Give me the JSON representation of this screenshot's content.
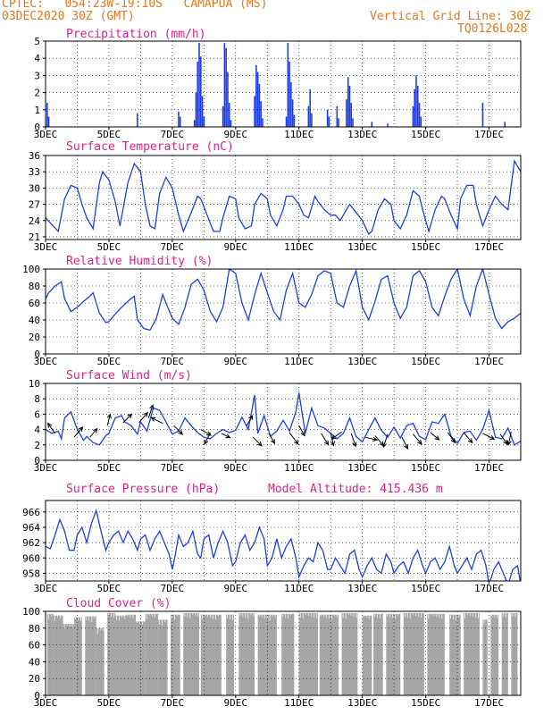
{
  "header": {
    "line1": "CPTEC:   054:23W-19:10S   CAMAPUA (MS)",
    "line2": "03DEC2020 30Z (GMT)",
    "grid_note": "Vertical Grid Line: 30Z",
    "code": "TQ0126L028"
  },
  "colors": {
    "header": "#e2771f",
    "title": "#e0208f",
    "series": "#1f3fe6",
    "cloud": "#a6a6a6",
    "arrow": "#000000"
  },
  "x_tick_labels": [
    "3DEC",
    "5DEC",
    "7DEC",
    "9DEC",
    "11DEC",
    "13DEC",
    "15DEC",
    "17DEC"
  ],
  "chart_data": [
    {
      "type": "bar",
      "title": "Precipitation (mm/h)",
      "ylim": [
        0,
        5
      ],
      "yticks": [
        "0",
        "1",
        "2",
        "3",
        "4",
        "5"
      ],
      "grid": true,
      "bars": [
        [
          3.05,
          1.4
        ],
        [
          3.1,
          0.6
        ],
        [
          5.9,
          0.8
        ],
        [
          7.2,
          0.9
        ],
        [
          7.25,
          0.6
        ],
        [
          7.7,
          0.4
        ],
        [
          7.75,
          2.0
        ],
        [
          7.8,
          3.8
        ],
        [
          7.85,
          4.9
        ],
        [
          7.9,
          4.1
        ],
        [
          7.95,
          1.8
        ],
        [
          8.0,
          0.6
        ],
        [
          8.6,
          1.2
        ],
        [
          8.65,
          4.9
        ],
        [
          8.7,
          4.6
        ],
        [
          8.75,
          3.2
        ],
        [
          8.8,
          1.4
        ],
        [
          8.85,
          0.4
        ],
        [
          9.6,
          1.8
        ],
        [
          9.65,
          3.6
        ],
        [
          9.7,
          3.2
        ],
        [
          9.75,
          2.5
        ],
        [
          9.8,
          1.5
        ],
        [
          9.85,
          0.5
        ],
        [
          10.6,
          0.6
        ],
        [
          10.65,
          4.9
        ],
        [
          10.7,
          3.8
        ],
        [
          10.75,
          2.6
        ],
        [
          10.8,
          1.6
        ],
        [
          10.85,
          0.7
        ],
        [
          11.3,
          1.2
        ],
        [
          11.35,
          2.2
        ],
        [
          11.4,
          0.8
        ],
        [
          11.9,
          1.0
        ],
        [
          11.95,
          0.6
        ],
        [
          12.2,
          1.2
        ],
        [
          12.25,
          0.5
        ],
        [
          12.5,
          1.6
        ],
        [
          12.55,
          2.9
        ],
        [
          12.6,
          2.4
        ],
        [
          12.65,
          1.4
        ],
        [
          12.7,
          0.5
        ],
        [
          13.3,
          0.3
        ],
        [
          13.8,
          0.2
        ],
        [
          14.6,
          1.2
        ],
        [
          14.65,
          2.2
        ],
        [
          14.7,
          3.0
        ],
        [
          14.75,
          2.4
        ],
        [
          14.8,
          1.4
        ],
        [
          14.85,
          0.6
        ],
        [
          16.8,
          1.4
        ],
        [
          17.5,
          0.3
        ]
      ]
    },
    {
      "type": "line",
      "title": "Surface Temperature (nC)",
      "ylim": [
        20.5,
        36
      ],
      "yticks": [
        "21",
        "24",
        "27",
        "30",
        "33",
        "36"
      ],
      "grid": true,
      "x": [
        3.0,
        3.4,
        3.6,
        3.8,
        4.0,
        4.15,
        4.3,
        4.5,
        4.7,
        4.8,
        5.0,
        5.2,
        5.35,
        5.6,
        5.8,
        6.0,
        6.15,
        6.3,
        6.45,
        6.6,
        6.8,
        7.0,
        7.2,
        7.35,
        7.6,
        7.8,
        7.9,
        8.1,
        8.3,
        8.5,
        8.6,
        8.8,
        9.0,
        9.1,
        9.3,
        9.5,
        9.6,
        9.8,
        10.0,
        10.1,
        10.3,
        10.5,
        10.6,
        10.8,
        11.0,
        11.15,
        11.3,
        11.5,
        11.6,
        11.8,
        12.0,
        12.15,
        12.3,
        12.5,
        12.6,
        12.8,
        13.0,
        13.2,
        13.3,
        13.5,
        13.7,
        13.9,
        14.0,
        14.2,
        14.4,
        14.6,
        14.8,
        14.9,
        15.1,
        15.3,
        15.5,
        15.6,
        15.8,
        16.0,
        16.1,
        16.3,
        16.5,
        16.6,
        16.8,
        17.0,
        17.2,
        17.4,
        17.6,
        17.8,
        18.0
      ],
      "y": [
        24.5,
        22.0,
        28.0,
        30.5,
        30.0,
        27.0,
        24.5,
        22.5,
        31.0,
        33.0,
        31.5,
        27.5,
        23.0,
        31.0,
        34.5,
        33.0,
        27.0,
        23.0,
        22.5,
        29.0,
        32.0,
        30.0,
        25.0,
        22.0,
        25.5,
        28.5,
        28.0,
        25.0,
        22.0,
        22.0,
        24.5,
        28.5,
        28.0,
        24.5,
        22.5,
        23.0,
        27.0,
        29.0,
        28.0,
        25.0,
        23.0,
        26.0,
        28.5,
        28.5,
        27.0,
        25.0,
        24.5,
        28.5,
        27.5,
        26.0,
        25.0,
        25.0,
        24.0,
        26.0,
        27.0,
        25.5,
        24.0,
        21.5,
        22.0,
        26.0,
        28.0,
        27.0,
        24.0,
        22.5,
        25.0,
        29.5,
        28.5,
        26.0,
        22.0,
        26.0,
        28.5,
        28.0,
        25.0,
        22.5,
        28.0,
        30.5,
        30.5,
        27.0,
        23.0,
        26.0,
        28.5,
        27.0,
        26.0,
        35.0,
        33.0
      ]
    },
    {
      "type": "line",
      "title": "Relative Humidity (%)",
      "ylim": [
        0,
        100
      ],
      "yticks": [
        "0",
        "20",
        "40",
        "60",
        "80",
        "100"
      ],
      "grid": true,
      "x": [
        3.0,
        3.1,
        3.3,
        3.5,
        3.6,
        3.8,
        4.0,
        4.2,
        4.4,
        4.5,
        4.7,
        4.9,
        5.0,
        5.2,
        5.4,
        5.6,
        5.8,
        5.9,
        6.1,
        6.3,
        6.5,
        6.7,
        6.8,
        7.0,
        7.2,
        7.4,
        7.6,
        7.8,
        8.0,
        8.2,
        8.4,
        8.6,
        8.8,
        9.0,
        9.2,
        9.4,
        9.6,
        9.8,
        10.0,
        10.2,
        10.4,
        10.6,
        10.8,
        11.0,
        11.2,
        11.4,
        11.6,
        11.8,
        12.0,
        12.2,
        12.4,
        12.6,
        12.8,
        13.0,
        13.2,
        13.4,
        13.6,
        13.8,
        14.0,
        14.2,
        14.4,
        14.6,
        14.8,
        15.0,
        15.2,
        15.4,
        15.6,
        15.8,
        16.0,
        16.2,
        16.4,
        16.6,
        16.8,
        17.0,
        17.2,
        17.4,
        17.6,
        17.8,
        18.0
      ],
      "y": [
        65,
        72,
        80,
        85,
        65,
        50,
        55,
        62,
        68,
        72,
        48,
        37,
        38,
        47,
        55,
        62,
        68,
        40,
        30,
        28,
        42,
        70,
        60,
        42,
        35,
        55,
        82,
        88,
        75,
        50,
        38,
        55,
        100,
        95,
        60,
        40,
        70,
        95,
        72,
        50,
        40,
        75,
        95,
        60,
        55,
        70,
        92,
        98,
        95,
        60,
        55,
        80,
        98,
        55,
        40,
        62,
        88,
        92,
        60,
        42,
        55,
        92,
        98,
        85,
        55,
        45,
        68,
        88,
        100,
        65,
        45,
        80,
        100,
        70,
        42,
        30,
        38,
        42,
        48
      ]
    },
    {
      "type": "line",
      "title": "Surface Wind (m/s)",
      "ylim": [
        0,
        10
      ],
      "yticks": [
        "0",
        "2",
        "4",
        "6",
        "8",
        "10"
      ],
      "grid": true,
      "x": [
        3.0,
        3.2,
        3.4,
        3.5,
        3.6,
        3.8,
        4.0,
        4.2,
        4.3,
        4.5,
        4.7,
        4.9,
        5.0,
        5.2,
        5.4,
        5.5,
        5.7,
        5.9,
        6.0,
        6.2,
        6.4,
        6.6,
        6.8,
        7.0,
        7.2,
        7.4,
        7.6,
        7.8,
        8.0,
        8.2,
        8.4,
        8.6,
        8.8,
        9.0,
        9.2,
        9.4,
        9.6,
        9.7,
        9.9,
        10.1,
        10.3,
        10.5,
        10.7,
        10.9,
        11.0,
        11.2,
        11.4,
        11.6,
        11.8,
        12.0,
        12.2,
        12.4,
        12.6,
        12.8,
        13.0,
        13.2,
        13.4,
        13.6,
        13.8,
        14.0,
        14.2,
        14.4,
        14.6,
        14.8,
        15.0,
        15.2,
        15.4,
        15.6,
        15.8,
        16.0,
        16.2,
        16.4,
        16.6,
        16.8,
        17.0,
        17.2,
        17.4,
        17.6,
        17.8,
        18.0
      ],
      "y": [
        4.0,
        3.5,
        3.8,
        2.8,
        5.5,
        6.3,
        4.0,
        2.6,
        3.1,
        2.3,
        2.0,
        3.2,
        3.5,
        5.5,
        5.8,
        5.0,
        4.5,
        3.4,
        5.0,
        3.8,
        6.8,
        6.5,
        5.0,
        3.4,
        3.8,
        5.5,
        4.5,
        3.6,
        3.0,
        2.8,
        3.5,
        4.0,
        3.6,
        3.9,
        5.6,
        4.0,
        8.5,
        3.5,
        5.8,
        3.1,
        3.8,
        5.2,
        3.8,
        6.3,
        8.8,
        3.5,
        6.8,
        4.5,
        4.2,
        3.5,
        2.8,
        3.5,
        5.5,
        3.1,
        2.4,
        4.0,
        5.5,
        3.9,
        3.0,
        4.3,
        2.9,
        4.5,
        4.8,
        3.1,
        2.7,
        5.0,
        4.8,
        6.0,
        3.1,
        2.2,
        3.6,
        3.8,
        2.6,
        4.0,
        6.5,
        3.0,
        2.8,
        4.2,
        2.0,
        2.5
      ],
      "arrows": [
        [
          3.3,
          3.5,
          -0.5,
          0.7
        ],
        [
          3.9,
          3.0,
          0.6,
          0.7
        ],
        [
          4.4,
          3.0,
          0.5,
          0.6
        ],
        [
          4.95,
          4.5,
          0.2,
          0.8
        ],
        [
          5.45,
          4.9,
          0.6,
          0.6
        ],
        [
          5.95,
          4.9,
          0.6,
          0.7
        ],
        [
          6.25,
          5.5,
          0.3,
          0.9
        ],
        [
          6.7,
          4.8,
          -0.8,
          0.4
        ],
        [
          7.05,
          4.5,
          0.6,
          -0.6
        ],
        [
          7.9,
          4.0,
          0.7,
          -0.4
        ],
        [
          8.2,
          3.6,
          -0.4,
          -0.8
        ],
        [
          8.55,
          3.5,
          0.6,
          -0.3
        ],
        [
          9.35,
          4.5,
          0.4,
          0.7
        ],
        [
          9.55,
          3.0,
          0.6,
          -0.6
        ],
        [
          10.05,
          3.5,
          0.4,
          -0.7
        ],
        [
          10.7,
          3.6,
          0.6,
          -0.8
        ],
        [
          11.0,
          4.5,
          0.4,
          -0.7
        ],
        [
          11.7,
          3.5,
          0.5,
          -0.8
        ],
        [
          12.0,
          3.6,
          0.2,
          -0.9
        ],
        [
          12.35,
          3.7,
          -0.7,
          -0.5
        ],
        [
          12.65,
          3.5,
          0.3,
          -0.9
        ],
        [
          13.1,
          3.0,
          0.8,
          -0.2
        ],
        [
          13.4,
          3.2,
          0.6,
          -0.7
        ],
        [
          13.8,
          3.4,
          -0.3,
          -0.9
        ],
        [
          14.25,
          3.0,
          0.4,
          -0.8
        ],
        [
          14.6,
          3.4,
          0.6,
          -0.7
        ],
        [
          15.15,
          3.6,
          0.6,
          -0.5
        ],
        [
          15.7,
          3.6,
          0.5,
          -0.7
        ],
        [
          16.2,
          3.6,
          0.6,
          -0.7
        ],
        [
          16.8,
          3.5,
          0.8,
          -0.4
        ],
        [
          17.35,
          3.4,
          0.5,
          -0.7
        ],
        [
          17.7,
          3.7,
          -0.2,
          -0.9
        ]
      ]
    },
    {
      "type": "line",
      "title": "Surface Pressure (hPa)",
      "subtitle": "Model Altitude: 415.436 m",
      "ylim": [
        957,
        967.5
      ],
      "yticks": [
        "958",
        "960",
        "962",
        "964",
        "966"
      ],
      "grid": true,
      "x": [
        3.0,
        3.15,
        3.3,
        3.45,
        3.6,
        3.75,
        3.9,
        4.0,
        4.15,
        4.3,
        4.45,
        4.6,
        4.75,
        4.9,
        5.0,
        5.15,
        5.3,
        5.45,
        5.6,
        5.75,
        5.9,
        6.0,
        6.15,
        6.3,
        6.45,
        6.6,
        6.75,
        6.9,
        7.0,
        7.1,
        7.2,
        7.35,
        7.5,
        7.65,
        7.8,
        7.9,
        8.0,
        8.15,
        8.3,
        8.45,
        8.6,
        8.75,
        8.9,
        9.0,
        9.15,
        9.3,
        9.45,
        9.6,
        9.75,
        9.9,
        10.0,
        10.15,
        10.3,
        10.45,
        10.6,
        10.75,
        10.9,
        11.0,
        11.15,
        11.3,
        11.45,
        11.6,
        11.75,
        11.9,
        12.0,
        12.15,
        12.3,
        12.45,
        12.6,
        12.75,
        12.9,
        13.0,
        13.15,
        13.3,
        13.45,
        13.6,
        13.75,
        13.9,
        14.0,
        14.15,
        14.3,
        14.45,
        14.6,
        14.75,
        14.9,
        15.0,
        15.15,
        15.3,
        15.45,
        15.6,
        15.75,
        15.9,
        16.0,
        16.15,
        16.3,
        16.45,
        16.6,
        16.75,
        16.9,
        17.0,
        17.15,
        17.3,
        17.45,
        17.6,
        17.75,
        17.9,
        18.0
      ],
      "y": [
        961.5,
        961.2,
        963.0,
        965.0,
        963.5,
        961.0,
        961.0,
        963.0,
        964.0,
        962.0,
        964.5,
        966.2,
        963.5,
        961.0,
        962.0,
        963.0,
        963.5,
        962.0,
        963.5,
        962.5,
        961.0,
        962.5,
        963.0,
        961.0,
        962.5,
        963.5,
        962.0,
        960.5,
        958.5,
        960.5,
        963.0,
        961.5,
        962.0,
        963.5,
        960.5,
        960.0,
        962.5,
        963.0,
        960.0,
        962.0,
        963.5,
        962.0,
        959.0,
        959.5,
        962.0,
        963.0,
        961.0,
        962.0,
        964.0,
        962.5,
        959.0,
        960.0,
        962.5,
        960.0,
        961.5,
        962.5,
        960.0,
        957.5,
        959.0,
        960.0,
        959.5,
        962.0,
        961.0,
        958.5,
        958.5,
        960.0,
        959.0,
        958.0,
        960.5,
        961.0,
        958.5,
        957.5,
        959.0,
        960.0,
        958.5,
        958.0,
        960.5,
        959.5,
        958.0,
        959.0,
        959.5,
        958.0,
        960.0,
        961.0,
        959.0,
        958.0,
        959.5,
        960.0,
        958.5,
        959.5,
        961.5,
        959.0,
        958.0,
        959.0,
        960.0,
        958.5,
        960.5,
        961.0,
        959.0,
        956.5,
        958.5,
        959.5,
        958.0,
        956.5,
        958.5,
        959.0,
        956.5
      ]
    },
    {
      "type": "bar",
      "title": "Cloud Cover (%)",
      "ylim": [
        0,
        100
      ],
      "yticks": [
        "0",
        "20",
        "40",
        "60",
        "80",
        "100"
      ],
      "grid": true,
      "blocks": [
        [
          3.05,
          3.25,
          97
        ],
        [
          3.25,
          3.55,
          95
        ],
        [
          3.55,
          3.9,
          85
        ],
        [
          3.9,
          4.15,
          93
        ],
        [
          4.25,
          4.6,
          94
        ],
        [
          4.6,
          4.85,
          80
        ],
        [
          4.95,
          5.2,
          98
        ],
        [
          5.2,
          5.55,
          95
        ],
        [
          5.55,
          5.85,
          96
        ],
        [
          5.85,
          6.15,
          88
        ],
        [
          6.15,
          6.55,
          97
        ],
        [
          6.55,
          6.85,
          90
        ],
        [
          6.95,
          7.25,
          96
        ],
        [
          7.35,
          7.85,
          98
        ],
        [
          7.9,
          8.55,
          96
        ],
        [
          8.7,
          8.95,
          96
        ],
        [
          9.1,
          9.6,
          98
        ],
        [
          9.7,
          10.3,
          96
        ],
        [
          10.45,
          10.85,
          97
        ],
        [
          11.0,
          11.6,
          98
        ],
        [
          11.65,
          12.25,
          96
        ],
        [
          12.35,
          12.85,
          98
        ],
        [
          13.0,
          13.3,
          95
        ],
        [
          13.35,
          13.65,
          97
        ],
        [
          13.75,
          14.2,
          97
        ],
        [
          14.3,
          14.95,
          98
        ],
        [
          15.05,
          15.6,
          97
        ],
        [
          15.75,
          16.1,
          96
        ],
        [
          16.2,
          16.7,
          98
        ],
        [
          16.8,
          16.95,
          90
        ],
        [
          17.05,
          17.3,
          96
        ],
        [
          17.4,
          17.6,
          98
        ],
        [
          17.7,
          17.9,
          98
        ]
      ]
    }
  ]
}
